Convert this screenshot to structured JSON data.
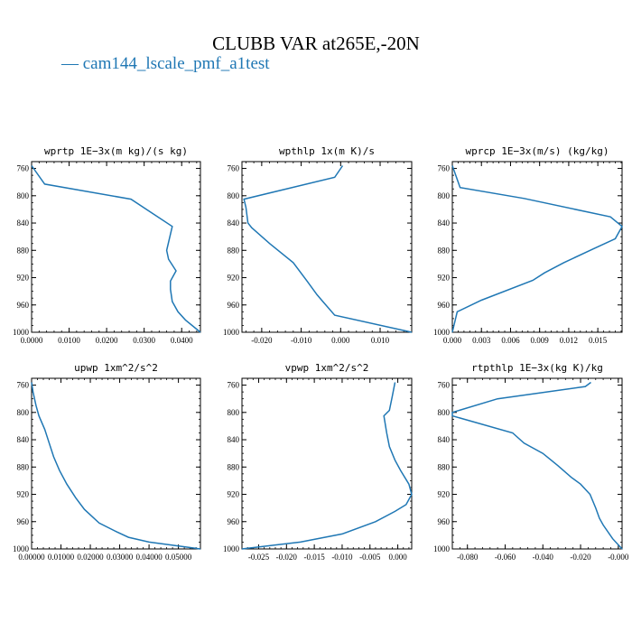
{
  "title": "CLUBB VAR at265E,-20N",
  "legend": {
    "label": "cam144_lscale_pmf_a1test",
    "color": "#1f77b4"
  },
  "chart_data": [
    {
      "type": "line",
      "title": "wprtp  1E−3x(m kg)/(s kg)",
      "xlim": [
        0,
        0.045
      ],
      "xticks": [
        0,
        0.01,
        0.02,
        0.03,
        0.04
      ],
      "xticklabels": [
        "0.0000",
        "0.0100",
        "0.0200",
        "0.0300",
        "0.0400"
      ],
      "ylim": [
        1000,
        750
      ],
      "yticks": [
        760,
        800,
        840,
        880,
        920,
        960,
        1000
      ],
      "series": [
        {
          "x": [
            0.0,
            0.0035,
            0.0265,
            0.032,
            0.0375,
            0.036,
            0.0365,
            0.0385,
            0.037,
            0.037,
            0.0375,
            0.039,
            0.041,
            0.045
          ],
          "y": [
            756,
            783,
            805,
            825,
            845,
            880,
            893,
            910,
            925,
            937,
            955,
            970,
            982,
            1000
          ]
        }
      ]
    },
    {
      "type": "line",
      "title": "wpthlp  1x(m K)/s",
      "xlim": [
        -0.025,
        0.018
      ],
      "xticks": [
        -0.02,
        -0.01,
        0.0,
        0.01
      ],
      "xticklabels": [
        "-0.020",
        "-0.010",
        "0.000",
        "0.010"
      ],
      "ylim": [
        1000,
        750
      ],
      "yticks": [
        760,
        800,
        840,
        880,
        920,
        960,
        1000
      ],
      "series": [
        {
          "x": [
            0.0005,
            -0.0015,
            -0.0245,
            -0.024,
            -0.0235,
            -0.0225,
            -0.018,
            -0.012,
            -0.0085,
            -0.006,
            -0.0045,
            -0.0015,
            0.018
          ],
          "y": [
            756,
            773,
            805,
            817,
            840,
            847,
            870,
            898,
            925,
            945,
            955,
            975,
            1000
          ]
        }
      ]
    },
    {
      "type": "line",
      "title": "wprcp  1E−3x(m/s) (kg/kg)",
      "xlim": [
        0,
        0.0175
      ],
      "xticks": [
        0,
        0.003,
        0.006,
        0.009,
        0.012,
        0.015
      ],
      "xticklabels": [
        "0.000",
        "0.003",
        "0.006",
        "0.009",
        "0.012",
        "0.015"
      ],
      "ylim": [
        1000,
        750
      ],
      "yticks": [
        760,
        800,
        840,
        880,
        920,
        960,
        1000
      ],
      "series": [
        {
          "x": [
            0.0,
            0.0008,
            0.0074,
            0.0163,
            0.0175,
            0.0168,
            0.0145,
            0.0115,
            0.0095,
            0.0083,
            0.003,
            0.0005,
            0.0
          ],
          "y": [
            756,
            788,
            804,
            831,
            845,
            863,
            878,
            898,
            913,
            924,
            953,
            970,
            1000
          ]
        }
      ]
    },
    {
      "type": "line",
      "title": "upwp  1xm^2/s^2",
      "xlim": [
        0,
        0.0575
      ],
      "xticks": [
        0,
        0.01,
        0.02,
        0.03,
        0.04,
        0.05
      ],
      "xticklabels": [
        "0.00000",
        "0.01000",
        "0.02000",
        "0.03000",
        "0.04000",
        "0.05000"
      ],
      "ylim": [
        1000,
        750
      ],
      "yticks": [
        760,
        800,
        840,
        880,
        920,
        960,
        1000
      ],
      "series": [
        {
          "x": [
            0.0,
            0.0005,
            0.0015,
            0.0025,
            0.0045,
            0.006,
            0.0075,
            0.0095,
            0.012,
            0.015,
            0.018,
            0.023,
            0.029,
            0.033,
            0.04,
            0.0575
          ],
          "y": [
            756,
            770,
            790,
            805,
            825,
            845,
            865,
            885,
            905,
            925,
            942,
            962,
            975,
            983,
            990,
            1000
          ]
        }
      ]
    },
    {
      "type": "line",
      "title": "vpwp  1xm^2/s^2",
      "xlim": [
        -0.028,
        0.0025
      ],
      "xticks": [
        -0.025,
        -0.02,
        -0.015,
        -0.01,
        -0.005,
        0.0
      ],
      "xticklabels": [
        "-0.025",
        "-0.020",
        "-0.015",
        "-0.010",
        "-0.005",
        "0.000"
      ],
      "ylim": [
        1000,
        750
      ],
      "yticks": [
        760,
        800,
        840,
        880,
        920,
        960,
        1000
      ],
      "series": [
        {
          "x": [
            -0.0005,
            -0.001,
            -0.0015,
            -0.0025,
            -0.002,
            -0.0015,
            -0.0005,
            0.0005,
            0.002,
            0.0025,
            0.0015,
            -0.0005,
            -0.004,
            -0.01,
            -0.0175,
            -0.028
          ],
          "y": [
            756,
            777,
            797,
            805,
            830,
            850,
            870,
            885,
            905,
            920,
            935,
            945,
            960,
            978,
            990,
            1000
          ]
        }
      ]
    },
    {
      "type": "line",
      "title": "rtpthlp  1E−3x(kg K)/kg",
      "xlim": [
        -0.088,
        0.002
      ],
      "xticks": [
        -0.08,
        -0.06,
        -0.04,
        -0.02,
        0.0
      ],
      "xticklabels": [
        "-0.080",
        "-0.060",
        "-0.040",
        "-0.020",
        "-0.000"
      ],
      "ylim": [
        1000,
        750
      ],
      "yticks": [
        760,
        800,
        840,
        880,
        920,
        960,
        1000
      ],
      "series": [
        {
          "x": [
            -0.0145,
            -0.0175,
            -0.064,
            -0.088,
            -0.088,
            -0.056,
            -0.05,
            -0.04,
            -0.032,
            -0.025,
            -0.02,
            -0.015,
            -0.012,
            -0.01,
            -0.008,
            -0.003,
            0.002
          ],
          "y": [
            756,
            762,
            780,
            800,
            805,
            830,
            845,
            860,
            878,
            895,
            905,
            920,
            940,
            955,
            965,
            985,
            1000
          ]
        }
      ]
    }
  ]
}
